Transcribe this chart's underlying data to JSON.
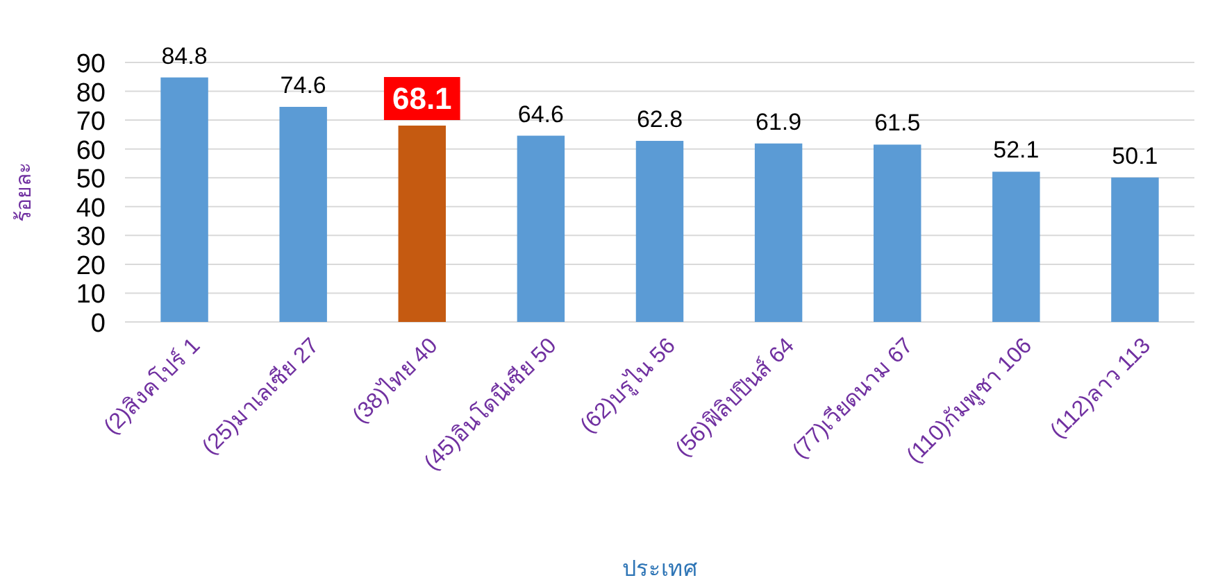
{
  "chart_data": {
    "type": "bar",
    "ylabel": "ร้อยละ",
    "xlabel": "ประเทศ",
    "categories": [
      "(2)สิงคโปร์ 1",
      "(25)มาเลเซีย 27",
      "(38)ไทย 40",
      "(45)อินโดนีเซีย 50",
      "(62)บรูไน 56",
      "(56)ฟิลิปปินส์ 64",
      "(77)เวียดนาม 67",
      "(110)กัมพูชา 106",
      "(112)ลาว 113"
    ],
    "values": [
      84.8,
      74.6,
      68.1,
      64.6,
      62.8,
      61.9,
      61.5,
      52.1,
      50.1
    ],
    "colors": [
      "#5b9bd5",
      "#5b9bd5",
      "#c55a11",
      "#5b9bd5",
      "#5b9bd5",
      "#5b9bd5",
      "#5b9bd5",
      "#5b9bd5",
      "#5b9bd5"
    ],
    "ylim": [
      0,
      90
    ],
    "yticks": [
      0,
      10,
      20,
      30,
      40,
      50,
      60,
      70,
      80,
      90
    ],
    "grid": "y",
    "data_labels": true
  }
}
